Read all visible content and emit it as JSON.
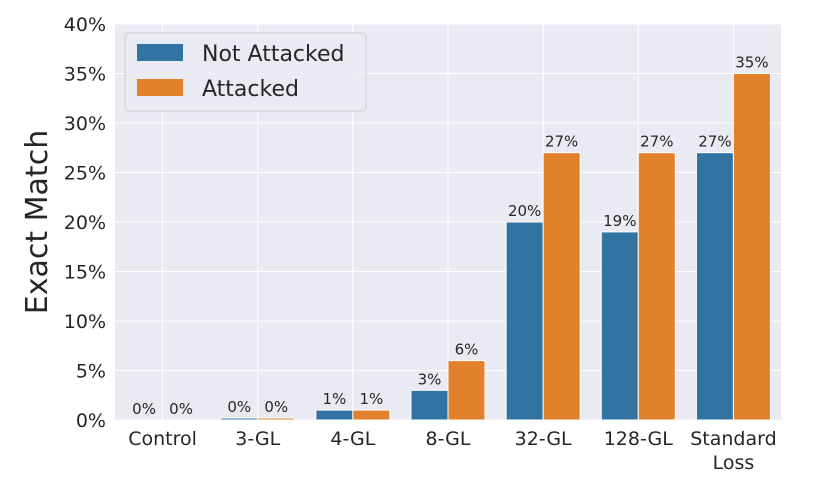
{
  "chart_data": {
    "type": "bar",
    "title": "",
    "xlabel": "",
    "ylabel": "Exact Match",
    "ylim": [
      0,
      40
    ],
    "yticks": [
      "0%",
      "5%",
      "10%",
      "15%",
      "20%",
      "25%",
      "30%",
      "35%",
      "40%"
    ],
    "grid": true,
    "legend_position": "top-left",
    "categories": [
      [
        "Control"
      ],
      [
        "3-GL"
      ],
      [
        "4-GL"
      ],
      [
        "8-GL"
      ],
      [
        "32-GL"
      ],
      [
        "128-GL"
      ],
      [
        "Standard",
        "Loss"
      ]
    ],
    "series": [
      {
        "name": "Not Attacked",
        "color": "#3274a1",
        "values": [
          0,
          0.2,
          1,
          3,
          20,
          19,
          27
        ],
        "labels": [
          "0%",
          "0%",
          "1%",
          "3%",
          "20%",
          "19%",
          "27%"
        ]
      },
      {
        "name": "Attacked",
        "color": "#e1812c",
        "values": [
          0,
          0.2,
          1,
          6,
          27,
          27,
          35
        ],
        "labels": [
          "0%",
          "0%",
          "1%",
          "6%",
          "27%",
          "27%",
          "35%"
        ]
      }
    ]
  }
}
